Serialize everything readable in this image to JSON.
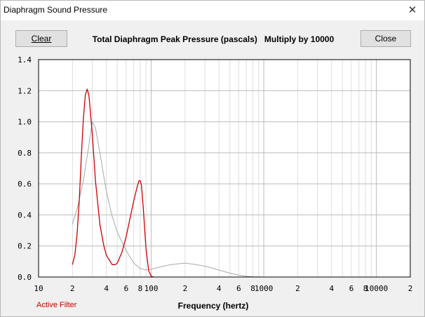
{
  "window": {
    "title": "Diaphragm Sound Pressure",
    "close_glyph": "✕"
  },
  "toolbar": {
    "clear_label": "Clear",
    "close_label": "Close",
    "heading": "Total Diaphragm Peak Pressure (pascals)   Multiply by 10000"
  },
  "footer": {
    "filter_label": "Active Filter"
  },
  "colors": {
    "active_series": "#cc0000",
    "reference_series": "#a8a8a8",
    "grid_minor": "#dedede",
    "grid_major": "#bbbbbb"
  },
  "chart_data": {
    "type": "line",
    "title": "Total Diaphragm Peak Pressure (pascals)   Multiply by 10000",
    "xlabel": "Frequency (hertz)",
    "ylabel": "",
    "x_scale": "log",
    "xlim": [
      10,
      20000
    ],
    "ylim": [
      0,
      1.4
    ],
    "grid": true,
    "y_ticks": [
      "0.0",
      "0.2",
      "0.4",
      "0.6",
      "0.8",
      "1.0",
      "1.2",
      "1.4"
    ],
    "x_ticks": [
      {
        "value": 10,
        "label": "10"
      },
      {
        "value": 20,
        "label": "2"
      },
      {
        "value": 40,
        "label": "4"
      },
      {
        "value": 60,
        "label": "6"
      },
      {
        "value": 80,
        "label": "8"
      },
      {
        "value": 100,
        "label": "100"
      },
      {
        "value": 200,
        "label": "2"
      },
      {
        "value": 400,
        "label": "4"
      },
      {
        "value": 600,
        "label": "6"
      },
      {
        "value": 800,
        "label": "8"
      },
      {
        "value": 1000,
        "label": "1000"
      },
      {
        "value": 2000,
        "label": "2"
      },
      {
        "value": 4000,
        "label": "4"
      },
      {
        "value": 6000,
        "label": "6"
      },
      {
        "value": 8000,
        "label": "8"
      },
      {
        "value": 10000,
        "label": "10000"
      },
      {
        "value": 20000,
        "label": "2"
      }
    ],
    "series": [
      {
        "role": "reference",
        "x": [
          20,
          22,
          25,
          28,
          30,
          32,
          35,
          40,
          45,
          50,
          60,
          70,
          80,
          90,
          100,
          120,
          150,
          200,
          250,
          300,
          400,
          500,
          600,
          700,
          800,
          1000
        ],
        "y": [
          0.34,
          0.44,
          0.62,
          0.85,
          1.0,
          0.96,
          0.8,
          0.55,
          0.39,
          0.29,
          0.17,
          0.09,
          0.055,
          0.045,
          0.05,
          0.065,
          0.08,
          0.09,
          0.08,
          0.07,
          0.045,
          0.025,
          0.012,
          0.005,
          0.002,
          0.0
        ]
      },
      {
        "role": "active",
        "x": [
          20,
          21,
          22,
          23,
          24,
          25,
          26,
          27,
          28,
          30,
          32,
          35,
          38,
          40,
          45,
          48,
          50,
          55,
          60,
          65,
          70,
          75,
          78,
          80,
          82,
          85,
          90,
          95,
          100,
          105
        ],
        "y": [
          0.08,
          0.14,
          0.28,
          0.5,
          0.78,
          1.02,
          1.17,
          1.21,
          1.17,
          0.92,
          0.62,
          0.34,
          0.2,
          0.14,
          0.08,
          0.08,
          0.09,
          0.16,
          0.26,
          0.38,
          0.49,
          0.58,
          0.62,
          0.62,
          0.59,
          0.45,
          0.18,
          0.04,
          0.005,
          0.0
        ]
      }
    ]
  }
}
